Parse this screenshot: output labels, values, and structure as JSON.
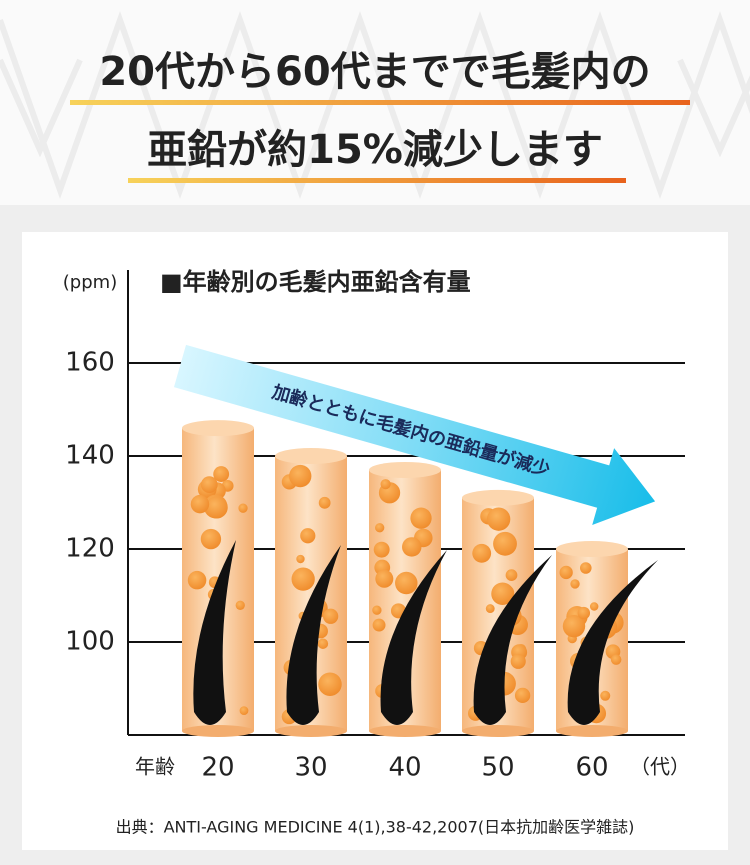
{
  "chart_data": {
    "type": "bar",
    "headline": [
      "20代から60代までで毛髪内の",
      "亜鉛が約15%減少します"
    ],
    "title": "■年齢別の毛髪内亜鉛含有量",
    "ylabel": "(ppm)",
    "xlabel": "年齢",
    "x_unit": "（代）",
    "annotation": "加齢とともに毛髪内の亜鉛量が減少",
    "source": "出典：ANTI-AGING MEDICINE 4(1),38-42,2007(日本抗加齢医学雑誌)",
    "categories": [
      "20",
      "30",
      "40",
      "50",
      "60"
    ],
    "values": [
      146,
      140,
      137,
      131,
      120
    ],
    "color": "#f9c38f",
    "ylim": [
      80,
      180
    ],
    "yticks": [
      100,
      120,
      140,
      160
    ],
    "grid": true
  }
}
